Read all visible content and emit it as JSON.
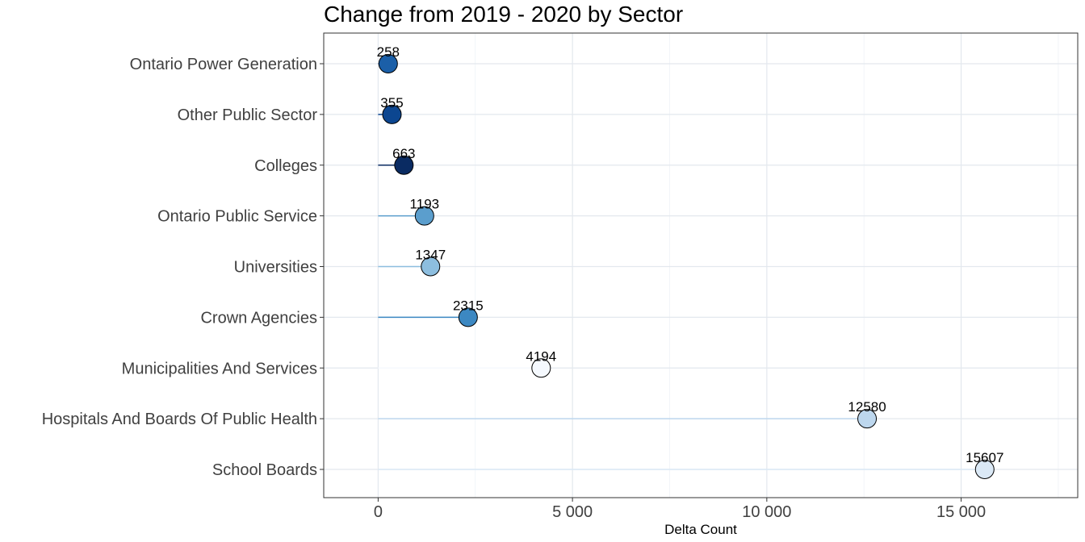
{
  "chart_data": {
    "type": "lollipop",
    "title": "Change from 2019 - 2020 by Sector",
    "xlabel": "Delta Count",
    "ylabel": "",
    "xlim": [
      -1400,
      18000
    ],
    "xticks": [
      0,
      5000,
      10000,
      15000
    ],
    "xtick_labels": [
      "0",
      "5 000",
      "10 000",
      "15 000"
    ],
    "grid": true,
    "legend": "none",
    "categories": [
      "Ontario Power Generation",
      "Other Public Sector",
      "Colleges",
      "Ontario Public Service",
      "Universities",
      "Crown Agencies",
      "Municipalities And Services",
      "Hospitals And Boards Of Public Health",
      "School Boards"
    ],
    "values": [
      258,
      355,
      663,
      1193,
      1347,
      2315,
      4194,
      12580,
      15607
    ],
    "value_labels": [
      "258",
      "355",
      "663",
      "1193",
      "1347",
      "2315",
      "4194",
      "12580",
      "15607"
    ],
    "colors": [
      "#1b5fa8",
      "#0c4690",
      "#0a2b62",
      "#5b9ecd",
      "#8dbedf",
      "#3c88c2",
      "#f5f9fe",
      "#bdd7ee",
      "#dbe9f6"
    ]
  }
}
